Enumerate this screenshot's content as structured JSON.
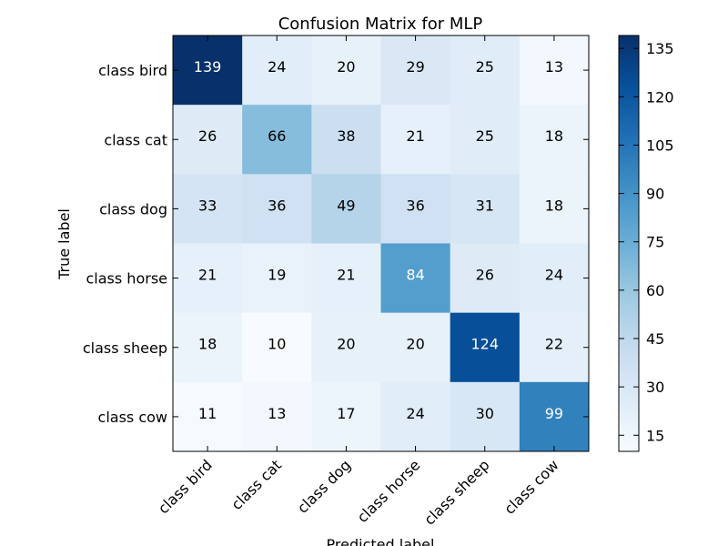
{
  "chart_data": {
    "type": "heatmap",
    "title": "Confusion Matrix for MLP",
    "xlabel": "Predicted label",
    "ylabel": "True label",
    "x_categories": [
      "class bird",
      "class cat",
      "class dog",
      "class horse",
      "class sheep",
      "class cow"
    ],
    "y_categories": [
      "class bird",
      "class cat",
      "class dog",
      "class horse",
      "class sheep",
      "class cow"
    ],
    "matrix": [
      [
        139,
        24,
        20,
        29,
        25,
        13
      ],
      [
        26,
        66,
        38,
        21,
        25,
        18
      ],
      [
        33,
        36,
        49,
        36,
        31,
        18
      ],
      [
        21,
        19,
        21,
        84,
        26,
        24
      ],
      [
        18,
        10,
        20,
        20,
        124,
        22
      ],
      [
        11,
        13,
        17,
        24,
        30,
        99
      ]
    ],
    "colormap": "Blues",
    "value_range": [
      10,
      139
    ],
    "colorbar_ticks": [
      15,
      30,
      45,
      60,
      75,
      90,
      105,
      120,
      135
    ],
    "text_color_dark": "#000000",
    "text_color_light": "#ffffff",
    "colors": {
      "low": "#f7fbff",
      "high": "#08306b"
    }
  }
}
